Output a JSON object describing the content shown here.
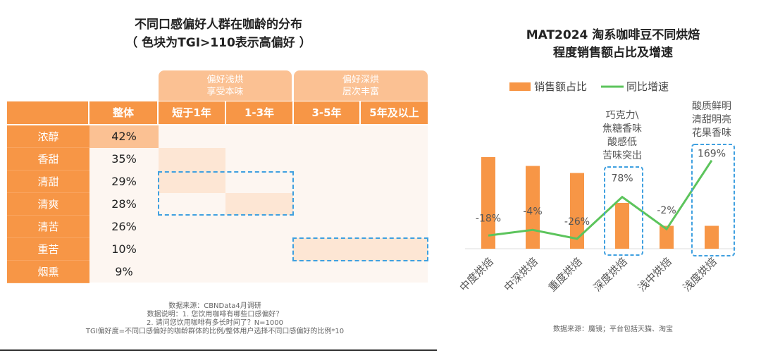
{
  "left": {
    "title_line1": "不同口感偏好人群在咖龄的分布",
    "title_line2": "（ 色块为TGI>110表示高偏好 ）",
    "groups": [
      {
        "line1": "偏好浅烘",
        "line2": "享受本味"
      },
      {
        "line1": "偏好深烘",
        "line2": "层次丰富"
      }
    ],
    "columns": [
      "",
      "整体",
      "短于1年",
      "1-3年",
      "3-5年",
      "5年及以上"
    ],
    "rows": [
      {
        "label": "浓醇",
        "overall": "42%"
      },
      {
        "label": "香甜",
        "overall": "35%"
      },
      {
        "label": "清甜",
        "overall": "29%"
      },
      {
        "label": "清爽",
        "overall": "28%"
      },
      {
        "label": "清苦",
        "overall": "26%"
      },
      {
        "label": "重苦",
        "overall": "10%"
      },
      {
        "label": "烟熏",
        "overall": "9%"
      }
    ],
    "high_preference_cells": [
      {
        "row": "香甜",
        "column": "短于1年"
      },
      {
        "row": "清甜",
        "column": "短于1年"
      },
      {
        "row": "清爽",
        "column": "1-3年"
      },
      {
        "row": "重苦",
        "column": "3-5年"
      },
      {
        "row": "重苦",
        "column": "5年及以上"
      }
    ],
    "notes": [
      "数据来源：CBNData4月调研",
      "数据说明：1. 您饮用咖啡有哪些口感偏好？",
      "2. 请问您饮用咖啡有多长时间了？N=1000",
      "TGI偏好度=不同口感偏好的咖龄群体的比例/整体用户选择不同口感偏好的比例*10"
    ],
    "colors": {
      "header": "#f79646",
      "group": "#fbc193",
      "highlight": "#fde6d4",
      "body": "#fdf6f1",
      "dash": "#3fa0e0"
    }
  },
  "chart_data": {
    "type": "bar+line",
    "title_line1": "MAT2024 淘系咖啡豆不同烘焙",
    "title_line2": "程度销售额占比及增速",
    "categories": [
      "中度烘焙",
      "中深烘焙",
      "重度烘焙",
      "深度烘焙",
      "浅中烘焙",
      "浅度烘焙"
    ],
    "series": [
      {
        "name": "销售额占比",
        "type": "bar",
        "color": "#f79646",
        "values": [
          26,
          23.5,
          21.5,
          13,
          6.5,
          6.5
        ]
      },
      {
        "name": "同比增速",
        "type": "line",
        "color": "#5cc45c",
        "values": [
          -18,
          -4,
          -26,
          78,
          -2,
          169
        ],
        "labels": [
          "-18%",
          "-4%",
          "-26%",
          "78%",
          "-2%",
          "169%"
        ]
      }
    ],
    "annotations": [
      {
        "category": "深度烘焙",
        "lines": [
          "巧克力\\",
          "焦糖香味",
          "酸感低",
          "苦味突出"
        ]
      },
      {
        "category": "浅度烘焙",
        "lines": [
          "酸质鲜明",
          "清甜明亮",
          "花果香味"
        ]
      }
    ],
    "legend": "top",
    "grid": false,
    "source": "数据来源：魔镜；平台包括天猫、淘宝"
  }
}
